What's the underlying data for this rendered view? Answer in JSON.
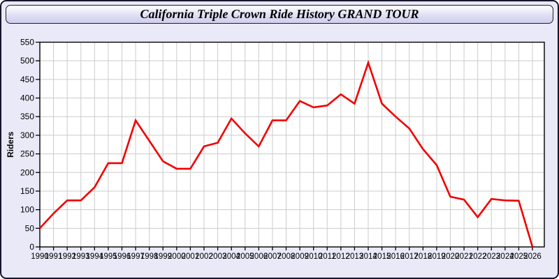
{
  "window": {
    "title": "California Triple Crown Ride History GRAND TOUR"
  },
  "colors": {
    "line": "#f20000",
    "background": "#e9e9f8",
    "plot_background": "#ffffff",
    "grid": "#cccccc",
    "axis": "#000000",
    "text": "#000000",
    "titlebar_border": "#1c1c30"
  },
  "chart_data": {
    "type": "line",
    "title": "California Triple Crown Ride History GRAND TOUR",
    "xlabel": "",
    "ylabel": "Riders",
    "x": [
      "1990",
      "1991",
      "1992",
      "1993",
      "1994",
      "1995",
      "1996",
      "1997",
      "1998",
      "1999",
      "2000",
      "2001",
      "2002",
      "2003",
      "2004",
      "2005",
      "2006",
      "2007",
      "2008",
      "2009",
      "2010",
      "2011",
      "2012",
      "2013",
      "2014",
      "2015",
      "2016",
      "2017",
      "2018",
      "2019",
      "2020",
      "2021",
      "2022",
      "2023",
      "2024",
      "2025",
      "2026"
    ],
    "series": [
      {
        "name": "Riders",
        "color": "#f20000",
        "values": [
          50,
          90,
          125,
          125,
          160,
          225,
          225,
          340,
          285,
          230,
          210,
          210,
          270,
          280,
          345,
          305,
          270,
          340,
          340,
          392,
          375,
          380,
          410,
          385,
          495,
          385,
          350,
          318,
          263,
          220,
          135,
          127,
          80,
          129,
          125,
          124,
          0
        ]
      }
    ],
    "ylim": [
      0,
      550
    ],
    "yticks": [
      0,
      50,
      100,
      150,
      200,
      250,
      300,
      350,
      400,
      450,
      500,
      550
    ],
    "grid": true,
    "legend": false
  }
}
